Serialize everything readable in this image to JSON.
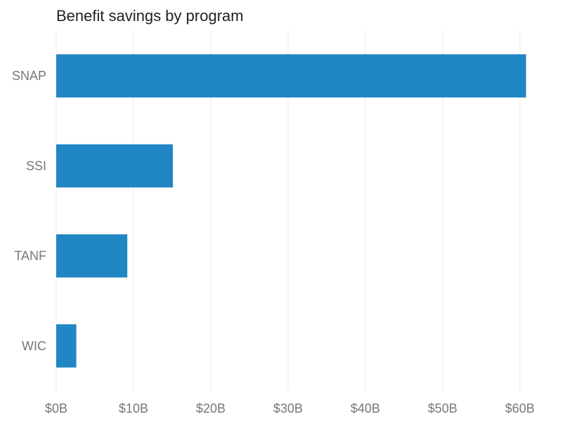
{
  "chart_data": {
    "type": "bar",
    "orientation": "horizontal",
    "title": "Benefit savings by program",
    "xlabel": "",
    "ylabel": "",
    "categories": [
      "SNAP",
      "SSI",
      "TANF",
      "WIC"
    ],
    "values": [
      60.8,
      15.1,
      9.2,
      2.6
    ],
    "unit": "billion USD",
    "xlim": [
      0,
      60
    ],
    "xticks": [
      0,
      10,
      20,
      30,
      40,
      50,
      60
    ],
    "xtick_labels": [
      "$0B",
      "$10B",
      "$20B",
      "$30B",
      "$40B",
      "$50B",
      "$60B"
    ],
    "grid": "vertical",
    "legend": "none",
    "bar_color": "#2186c4"
  }
}
